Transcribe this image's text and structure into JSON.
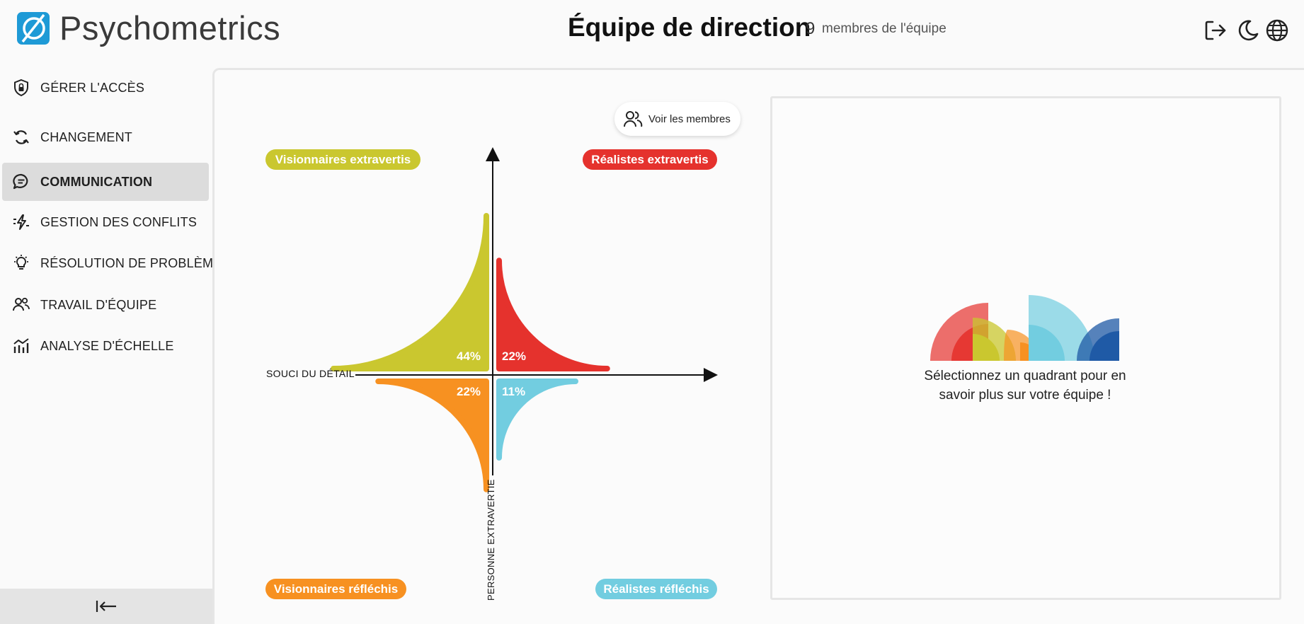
{
  "header": {
    "app_name": "Psychometrics",
    "team_title": "Équipe de direction",
    "member_count": "9",
    "member_count_label": "membres de l'équipe",
    "icons": [
      "logout-icon",
      "moon-icon",
      "globe-icon"
    ]
  },
  "sidebar": {
    "items": [
      {
        "label": "GÉRER L'ACCÈS",
        "icon": "shield-lock-icon"
      },
      {
        "label": "CHANGEMENT",
        "icon": "refresh-icon"
      },
      {
        "label": "COMMUNICATION",
        "icon": "chat-icon",
        "active": true
      },
      {
        "label": "GESTION DES CONFLITS",
        "icon": "lightning-icon"
      },
      {
        "label": "RÉSOLUTION DE PROBLÈMES",
        "icon": "lightbulb-icon"
      },
      {
        "label": "TRAVAIL D'ÉQUIPE",
        "icon": "users-icon"
      },
      {
        "label": "ANALYSE D'ÉCHELLE",
        "icon": "chart-icon"
      }
    ],
    "collapse_icon": "collapse-left-icon"
  },
  "main": {
    "members_button_label": "Voir les membres",
    "quadrants": {
      "top_left": "Visionnaires extravertis",
      "top_right": "Réalistes extravertis",
      "bottom_left": "Visionnaires réfléchis",
      "bottom_right": "Réalistes réfléchis"
    },
    "x_axis_label": "SOUCI DU DÉTAIL",
    "y_axis_label": "PERSONNE EXTRAVERTIE",
    "info_text": "Sélectionnez un quadrant pour en savoir plus sur votre équipe !"
  },
  "colors": {
    "visionnaires_extravertis": "#cac72f",
    "realistes_extravertis": "#e5322d",
    "visionnaires_reflechis": "#f79121",
    "realistes_reflechis": "#72cde0",
    "active_nav": "#dcdcdc",
    "logo": "#1e9ad6"
  },
  "chart_data": {
    "type": "pie",
    "categories": [
      "Visionnaires extravertis",
      "Réalistes extravertis",
      "Visionnaires réfléchis",
      "Réalistes réfléchis"
    ],
    "values": [
      44,
      22,
      22,
      11
    ],
    "labels": [
      "44%",
      "22%",
      "22%",
      "11%"
    ],
    "xlabel": "SOUCI DU DÉTAIL",
    "ylabel": "PERSONNE EXTRAVERTIE"
  }
}
